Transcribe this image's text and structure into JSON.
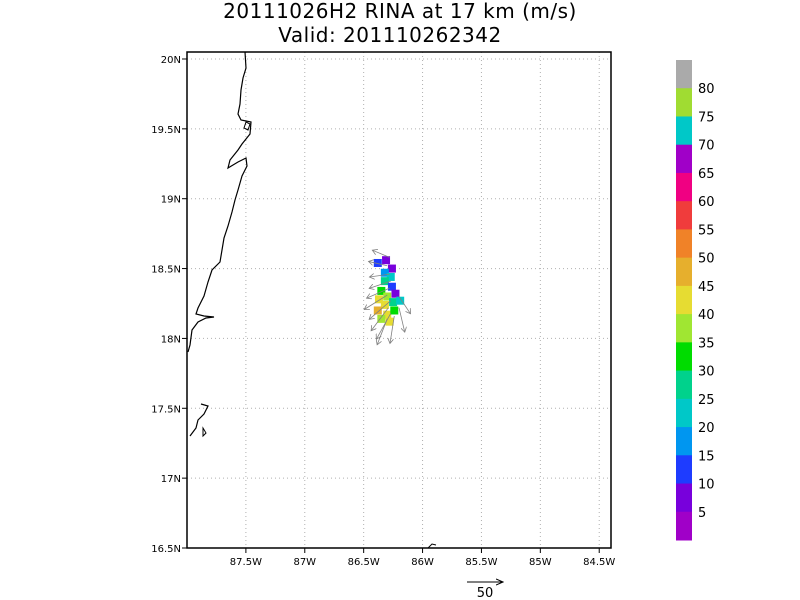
{
  "title": "20111026H2 RINA at 17 km (m/s)",
  "valid": "Valid: 201110262342",
  "map": {
    "lon_range": [
      -88.0,
      -84.4
    ],
    "lat_range": [
      16.5,
      20.05
    ],
    "lon_ticks": [
      {
        "value": -87.5,
        "label": "87.5W"
      },
      {
        "value": -87.0,
        "label": "87W"
      },
      {
        "value": -86.5,
        "label": "86.5W"
      },
      {
        "value": -86.0,
        "label": "86W"
      },
      {
        "value": -85.5,
        "label": "85.5W"
      },
      {
        "value": -85.0,
        "label": "85W"
      },
      {
        "value": -84.5,
        "label": "84.5W"
      }
    ],
    "lat_ticks": [
      {
        "value": 20.0,
        "label": "20N"
      },
      {
        "value": 19.5,
        "label": "19.5N"
      },
      {
        "value": 19.0,
        "label": "19N"
      },
      {
        "value": 18.5,
        "label": "18.5N"
      },
      {
        "value": 18.0,
        "label": "18N"
      },
      {
        "value": 17.5,
        "label": "17.5N"
      },
      {
        "value": 17.0,
        "label": "17N"
      },
      {
        "value": 16.5,
        "label": "16.5N"
      }
    ],
    "grid": true,
    "coastline_color": "#000000"
  },
  "colorbar": {
    "labels": [
      "80",
      "75",
      "70",
      "65",
      "60",
      "55",
      "50",
      "45",
      "40",
      "35",
      "30",
      "25",
      "20",
      "15",
      "10",
      "5"
    ],
    "colors": [
      "#aaaaaa",
      "#a0dc32",
      "#00c8c8",
      "#a000c8",
      "#f00082",
      "#f03c3c",
      "#f08228",
      "#e6af2d",
      "#e6dc32",
      "#a0e632",
      "#00dc00",
      "#00d28c",
      "#00c8c8",
      "#0096f0",
      "#1e3cff",
      "#7800dc",
      "#a000c8"
    ]
  },
  "reference_vector": {
    "label": "50"
  },
  "wind_field": {
    "cells": [
      {
        "lon": -86.38,
        "lat": 18.54,
        "speed": 12
      },
      {
        "lon": -86.31,
        "lat": 18.56,
        "speed": 8
      },
      {
        "lon": -86.26,
        "lat": 18.5,
        "speed": 5
      },
      {
        "lon": -86.32,
        "lat": 18.47,
        "speed": 17
      },
      {
        "lon": -86.27,
        "lat": 18.44,
        "speed": 20
      },
      {
        "lon": -86.32,
        "lat": 18.41,
        "speed": 27
      },
      {
        "lon": -86.26,
        "lat": 18.37,
        "speed": 12
      },
      {
        "lon": -86.23,
        "lat": 18.32,
        "speed": 8
      },
      {
        "lon": -86.35,
        "lat": 18.34,
        "speed": 33
      },
      {
        "lon": -86.3,
        "lat": 18.3,
        "speed": 37
      },
      {
        "lon": -86.37,
        "lat": 18.28,
        "speed": 42
      },
      {
        "lon": -86.25,
        "lat": 18.26,
        "speed": 25
      },
      {
        "lon": -86.19,
        "lat": 18.27,
        "speed": 22
      },
      {
        "lon": -86.32,
        "lat": 18.24,
        "speed": 40
      },
      {
        "lon": -86.38,
        "lat": 18.2,
        "speed": 45
      },
      {
        "lon": -86.3,
        "lat": 18.17,
        "speed": 42
      },
      {
        "lon": -86.24,
        "lat": 18.2,
        "speed": 30
      },
      {
        "lon": -86.35,
        "lat": 18.14,
        "speed": 38
      },
      {
        "lon": -86.28,
        "lat": 18.12,
        "speed": 40
      }
    ],
    "vectors": [
      {
        "lon": -86.28,
        "lat": 18.58,
        "u": -12,
        "v": 5
      },
      {
        "lon": -86.3,
        "lat": 18.52,
        "u": -13,
        "v": 3
      },
      {
        "lon": -86.28,
        "lat": 18.46,
        "u": -14,
        "v": -2
      },
      {
        "lon": -86.27,
        "lat": 18.41,
        "u": -15,
        "v": -5
      },
      {
        "lon": -86.28,
        "lat": 18.36,
        "u": -16,
        "v": -7
      },
      {
        "lon": -86.3,
        "lat": 18.31,
        "u": -16,
        "v": -10
      },
      {
        "lon": -86.27,
        "lat": 18.27,
        "u": -15,
        "v": -13
      },
      {
        "lon": -86.29,
        "lat": 18.22,
        "u": -12,
        "v": -16
      },
      {
        "lon": -86.27,
        "lat": 18.18,
        "u": -10,
        "v": -18
      },
      {
        "lon": -86.3,
        "lat": 18.14,
        "u": -7,
        "v": -18
      },
      {
        "lon": -86.24,
        "lat": 18.16,
        "u": -3,
        "v": -19
      },
      {
        "lon": -86.2,
        "lat": 18.22,
        "u": 4,
        "v": -17
      },
      {
        "lon": -86.2,
        "lat": 18.3,
        "u": 8,
        "v": -12
      }
    ]
  }
}
